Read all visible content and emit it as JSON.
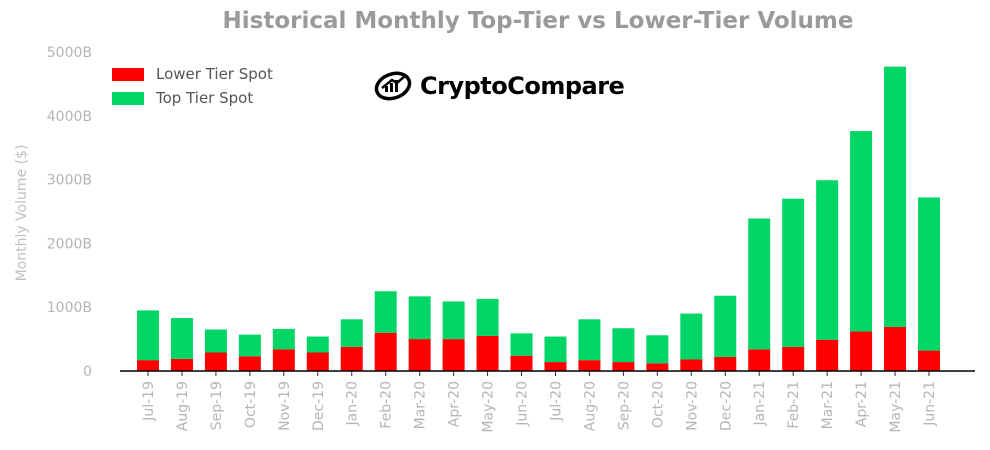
{
  "title": "Historical Monthly Top-Tier vs Lower-Tier Volume",
  "brand": {
    "name": "CryptoCompare",
    "icon": "cryptocompare-logo-icon"
  },
  "colors": {
    "lower": "#ff0000",
    "top": "#00d665",
    "axis": "#000000",
    "text": "#b5b5b5"
  },
  "legend": [
    {
      "label": "Lower Tier Spot",
      "color": "#ff0000"
    },
    {
      "label": "Top Tier Spot",
      "color": "#00d665"
    }
  ],
  "chart_data": {
    "type": "bar",
    "stacked": true,
    "title": "Historical Monthly Top-Tier vs Lower-Tier Volume",
    "ylabel": "Monthly Volume ($)",
    "ylim": [
      0,
      5000
    ],
    "yticks": [
      0,
      1000,
      2000,
      3000,
      4000,
      5000
    ],
    "ytick_labels": [
      "0",
      "1000B",
      "2000B",
      "3000B",
      "4000B",
      "5000B"
    ],
    "legend_position": "top-left",
    "categories": [
      "Jul-19",
      "Aug-19",
      "Sep-19",
      "Oct-19",
      "Nov-19",
      "Dec-19",
      "Jan-20",
      "Feb-20",
      "Mar-20",
      "Apr-20",
      "May-20",
      "Jun-20",
      "Jul-20",
      "Aug-20",
      "Sep-20",
      "Oct-20",
      "Nov-20",
      "Dec-20",
      "Jan-21",
      "Feb-21",
      "Mar-21",
      "Apr-21",
      "May-21",
      "Jun-21"
    ],
    "series": [
      {
        "name": "Lower Tier Spot",
        "color": "#ff0000",
        "values": [
          170,
          190,
          290,
          230,
          340,
          290,
          380,
          600,
          500,
          500,
          550,
          240,
          140,
          170,
          140,
          120,
          180,
          220,
          340,
          380,
          490,
          620,
          690,
          320
        ]
      },
      {
        "name": "Top Tier Spot",
        "color": "#00d665",
        "values": [
          780,
          640,
          360,
          340,
          320,
          250,
          430,
          650,
          670,
          590,
          580,
          350,
          400,
          640,
          530,
          440,
          720,
          960,
          2050,
          2320,
          2500,
          3140,
          4080,
          2400
        ]
      }
    ]
  }
}
